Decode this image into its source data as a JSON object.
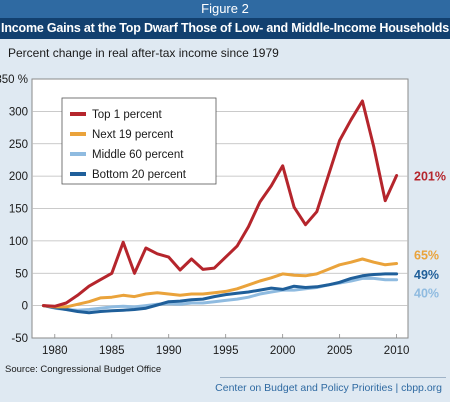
{
  "figure_label": "Figure 2",
  "title": "Income Gains at the Top Dwarf Those of Low- and Middle-Income Households",
  "subtitle": "Percent change in real after-tax income since 1979",
  "source": "Source: Congressional Budget Office",
  "credit": "Center on Budget and Policy Priorities | cbpp.org",
  "chart_data": {
    "type": "line",
    "title": "Income Gains at the Top Dwarf Those of Low- and Middle-Income Households",
    "subtitle": "Percent change in real after-tax income since 1979",
    "xlabel": "",
    "ylabel": "",
    "xlim": [
      1978,
      2011
    ],
    "ylim": [
      -50,
      350
    ],
    "x_ticks": [
      "1980",
      "1985",
      "1990",
      "1995",
      "2000",
      "2005",
      "2010"
    ],
    "y_ticks": [
      "350 %",
      "300",
      "250",
      "200",
      "150",
      "100",
      "50",
      "0",
      "-50"
    ],
    "grid": "horizontal",
    "legend_position": "top-left",
    "x": [
      1979,
      1980,
      1981,
      1982,
      1983,
      1984,
      1985,
      1986,
      1987,
      1988,
      1989,
      1990,
      1991,
      1992,
      1993,
      1994,
      1995,
      1996,
      1997,
      1998,
      1999,
      2000,
      2001,
      2002,
      2003,
      2004,
      2005,
      2006,
      2007,
      2008,
      2009,
      2010
    ],
    "series": [
      {
        "name": "Top 1 percent",
        "color": "#b5252c",
        "end_label": "201%",
        "values": [
          0,
          -1,
          4,
          16,
          30,
          40,
          50,
          98,
          50,
          89,
          80,
          75,
          55,
          72,
          56,
          58,
          75,
          92,
          122,
          160,
          185,
          216,
          152,
          125,
          145,
          200,
          255,
          287,
          316,
          245,
          162,
          201
        ]
      },
      {
        "name": "Next 19 percent",
        "color": "#eaa33b",
        "end_label": "65%",
        "values": [
          0,
          -2,
          -2,
          2,
          6,
          12,
          13,
          16,
          14,
          18,
          20,
          18,
          16,
          18,
          18,
          20,
          22,
          26,
          32,
          38,
          43,
          49,
          47,
          46,
          49,
          56,
          63,
          67,
          72,
          67,
          63,
          65
        ]
      },
      {
        "name": "Middle 60 percent",
        "color": "#8fbbe0",
        "end_label": "40%",
        "values": [
          0,
          -4,
          -6,
          -7,
          -6,
          -4,
          -2,
          -1,
          -2,
          0,
          2,
          3,
          2,
          4,
          4,
          6,
          8,
          10,
          13,
          18,
          21,
          24,
          24,
          26,
          28,
          32,
          35,
          38,
          42,
          42,
          40,
          40
        ]
      },
      {
        "name": "Bottom 20 percent",
        "color": "#1f5f9a",
        "end_label": "49%",
        "values": [
          0,
          -3,
          -6,
          -9,
          -11,
          -9,
          -8,
          -7,
          -6,
          -4,
          1,
          6,
          7,
          9,
          10,
          14,
          17,
          19,
          21,
          24,
          27,
          25,
          30,
          28,
          29,
          32,
          36,
          42,
          46,
          48,
          49,
          49
        ]
      }
    ]
  }
}
